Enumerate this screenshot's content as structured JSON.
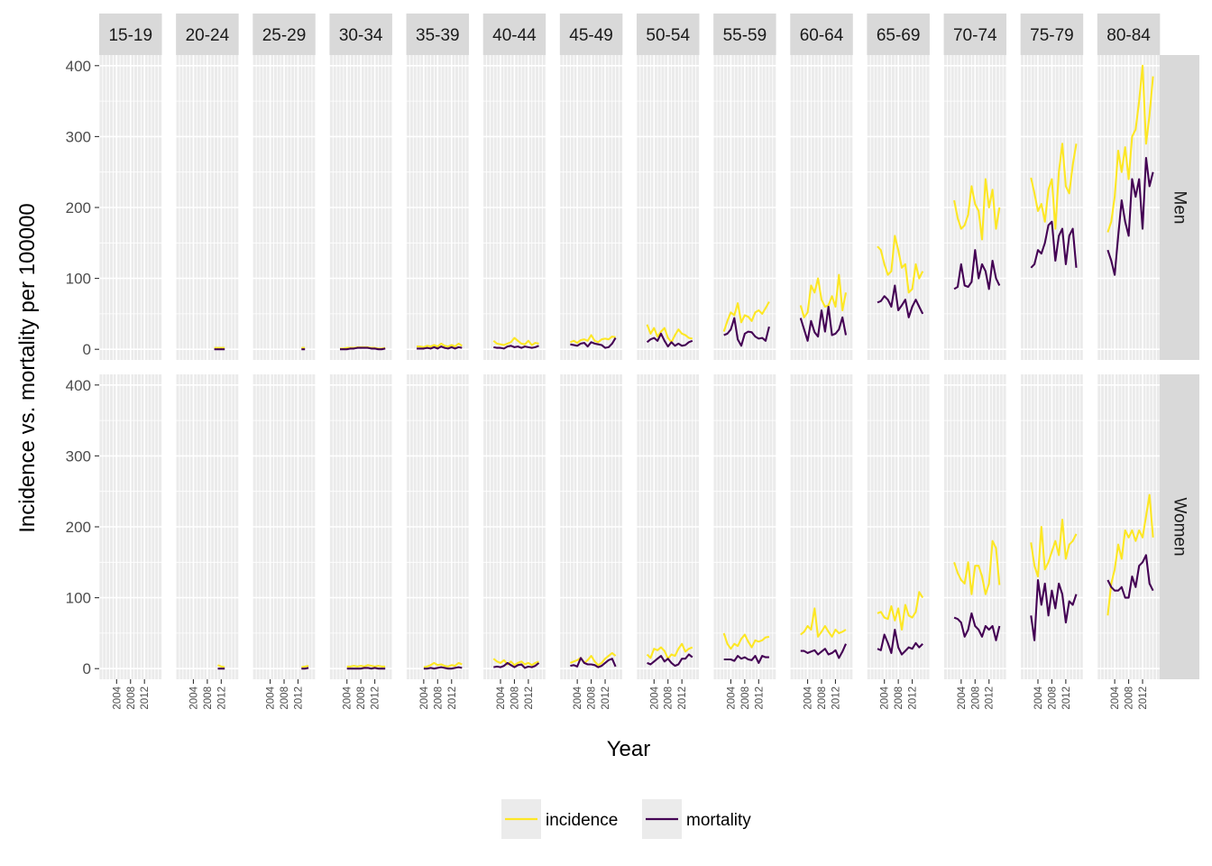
{
  "chart_data": {
    "type": "line",
    "xlabel": "Year",
    "ylabel": "Incidence vs. mortality per 100000",
    "ylim": [
      -15,
      415
    ],
    "yticks": [
      0,
      100,
      200,
      300,
      400
    ],
    "xlim": [
      1999,
      2017
    ],
    "xticks": [
      2004,
      2008,
      2012
    ],
    "xtick_labels": [
      "2004",
      "2008",
      "2012"
    ],
    "grid": true,
    "legend_position": "bottom",
    "colors": {
      "incidence": "#FDE725",
      "mortality": "#440154"
    },
    "legend": [
      {
        "key": "incidence",
        "label": "incidence"
      },
      {
        "key": "mortality",
        "label": "mortality"
      }
    ],
    "col_facets": [
      "15-19",
      "20-24",
      "25-29",
      "30-34",
      "35-39",
      "40-44",
      "45-49",
      "50-54",
      "55-59",
      "60-64",
      "65-69",
      "70-74",
      "75-79",
      "80-84"
    ],
    "row_facets": [
      "Men",
      "Women"
    ],
    "years": [
      2002,
      2003,
      2004,
      2005,
      2006,
      2007,
      2008,
      2009,
      2010,
      2011,
      2012,
      2013,
      2014,
      2015
    ],
    "series": {
      "Men": {
        "15-19": {
          "incidence": [],
          "mortality": []
        },
        "20-24": {
          "incidence": [
            null,
            null,
            null,
            null,
            null,
            null,
            null,
            null,
            2,
            2,
            2,
            2,
            null,
            null
          ],
          "mortality": [
            null,
            null,
            null,
            null,
            null,
            null,
            null,
            null,
            0,
            0,
            0,
            0,
            null,
            null
          ]
        },
        "25-29": {
          "incidence": [
            null,
            null,
            null,
            null,
            null,
            null,
            null,
            null,
            null,
            null,
            null,
            2,
            2,
            null
          ],
          "mortality": [
            null,
            null,
            null,
            null,
            null,
            null,
            null,
            null,
            null,
            null,
            null,
            0,
            0,
            null
          ]
        },
        "30-34": {
          "incidence": [
            1,
            1,
            2,
            2,
            2,
            3,
            3,
            3,
            3,
            2,
            2,
            1,
            1,
            2
          ],
          "mortality": [
            0,
            0,
            0,
            1,
            1,
            2,
            2,
            2,
            2,
            1,
            1,
            0,
            0,
            1
          ]
        },
        "35-39": {
          "incidence": [
            4,
            4,
            3,
            5,
            4,
            6,
            4,
            8,
            5,
            4,
            6,
            4,
            8,
            5
          ],
          "mortality": [
            1,
            1,
            1,
            2,
            1,
            3,
            1,
            4,
            2,
            1,
            3,
            1,
            3,
            2
          ]
        },
        "40-44": {
          "incidence": [
            12,
            8,
            7,
            6,
            8,
            10,
            16,
            12,
            8,
            7,
            12,
            6,
            9,
            8
          ],
          "mortality": [
            3,
            2,
            2,
            1,
            4,
            5,
            3,
            4,
            2,
            4,
            3,
            2,
            3,
            5
          ]
        },
        "45-49": {
          "incidence": [
            10,
            12,
            9,
            13,
            14,
            12,
            20,
            12,
            10,
            14,
            15,
            14,
            18,
            17
          ],
          "mortality": [
            7,
            6,
            5,
            8,
            9,
            4,
            10,
            8,
            7,
            6,
            2,
            3,
            8,
            16
          ]
        },
        "50-54": {
          "incidence": [
            35,
            22,
            30,
            18,
            25,
            30,
            16,
            10,
            20,
            28,
            22,
            20,
            16,
            15
          ],
          "mortality": [
            10,
            14,
            16,
            12,
            22,
            12,
            4,
            10,
            5,
            8,
            5,
            6,
            10,
            12
          ]
        },
        "55-59": {
          "incidence": [
            25,
            40,
            52,
            48,
            65,
            38,
            48,
            46,
            40,
            52,
            55,
            50,
            58,
            67
          ],
          "mortality": [
            20,
            22,
            28,
            44,
            14,
            5,
            22,
            25,
            24,
            18,
            15,
            16,
            12,
            32
          ]
        },
        "60-64": {
          "incidence": [
            62,
            45,
            52,
            90,
            80,
            100,
            70,
            60,
            62,
            75,
            60,
            105,
            55,
            80
          ],
          "mortality": [
            44,
            28,
            12,
            40,
            24,
            18,
            55,
            25,
            60,
            20,
            22,
            28,
            45,
            20
          ]
        },
        "65-69": {
          "incidence": [
            145,
            140,
            120,
            105,
            110,
            160,
            140,
            115,
            120,
            80,
            85,
            120,
            100,
            110
          ],
          "mortality": [
            66,
            68,
            75,
            70,
            60,
            90,
            55,
            62,
            70,
            45,
            60,
            70,
            60,
            50
          ]
        },
        "70-74": {
          "incidence": [
            210,
            185,
            170,
            175,
            190,
            230,
            205,
            195,
            155,
            240,
            200,
            225,
            170,
            200
          ],
          "mortality": [
            85,
            88,
            120,
            90,
            88,
            95,
            140,
            100,
            120,
            110,
            85,
            125,
            100,
            90
          ]
        },
        "75-79": {
          "incidence": [
            242,
            220,
            195,
            205,
            180,
            225,
            240,
            170,
            250,
            290,
            230,
            220,
            260,
            290
          ],
          "mortality": [
            115,
            120,
            140,
            135,
            150,
            175,
            180,
            125,
            160,
            170,
            120,
            160,
            170,
            115
          ]
        },
        "80-84": {
          "incidence": [
            165,
            180,
            215,
            280,
            250,
            285,
            240,
            300,
            310,
            350,
            400,
            290,
            330,
            385
          ],
          "mortality": [
            140,
            125,
            105,
            160,
            210,
            180,
            160,
            240,
            215,
            240,
            170,
            270,
            230,
            250
          ]
        }
      },
      "Women": {
        "15-19": {
          "incidence": [],
          "mortality": []
        },
        "20-24": {
          "incidence": [
            null,
            null,
            null,
            null,
            null,
            null,
            null,
            null,
            null,
            5,
            3,
            2,
            null,
            null
          ],
          "mortality": [
            null,
            null,
            null,
            null,
            null,
            null,
            null,
            null,
            null,
            0,
            0,
            0,
            null,
            null
          ]
        },
        "25-29": {
          "incidence": [
            null,
            null,
            null,
            null,
            null,
            null,
            null,
            null,
            null,
            null,
            null,
            2,
            3,
            4
          ],
          "mortality": [
            null,
            null,
            null,
            null,
            null,
            null,
            null,
            null,
            null,
            null,
            null,
            0,
            0,
            1
          ]
        },
        "30-34": {
          "incidence": [
            null,
            null,
            3,
            3,
            4,
            3,
            4,
            3,
            5,
            4,
            3,
            4,
            3,
            3
          ],
          "mortality": [
            null,
            null,
            0,
            0,
            0,
            0,
            0,
            1,
            1,
            0,
            1,
            0,
            0,
            0
          ]
        },
        "35-39": {
          "incidence": [
            null,
            null,
            2,
            3,
            5,
            8,
            5,
            6,
            4,
            3,
            5,
            4,
            8,
            6
          ],
          "mortality": [
            null,
            null,
            0,
            0,
            1,
            0,
            1,
            2,
            1,
            0,
            0,
            1,
            2,
            1
          ]
        },
        "40-44": {
          "incidence": [
            14,
            10,
            8,
            12,
            6,
            10,
            5,
            8,
            10,
            6,
            8,
            5,
            8,
            10
          ],
          "mortality": [
            2,
            3,
            2,
            4,
            8,
            5,
            2,
            5,
            6,
            1,
            3,
            2,
            4,
            8
          ]
        },
        "45-49": {
          "incidence": [
            8,
            10,
            12,
            15,
            8,
            12,
            18,
            10,
            5,
            8,
            14,
            18,
            22,
            18
          ],
          "mortality": [
            4,
            5,
            3,
            15,
            8,
            6,
            6,
            5,
            2,
            4,
            8,
            12,
            14,
            3
          ]
        },
        "50-54": {
          "incidence": [
            20,
            15,
            28,
            26,
            30,
            25,
            14,
            20,
            18,
            28,
            35,
            24,
            28,
            30
          ],
          "mortality": [
            8,
            6,
            10,
            14,
            18,
            10,
            14,
            8,
            4,
            6,
            14,
            14,
            20,
            16
          ]
        },
        "55-59": {
          "incidence": [
            50,
            35,
            28,
            35,
            32,
            42,
            48,
            38,
            30,
            40,
            38,
            40,
            44,
            45
          ],
          "mortality": [
            13,
            13,
            13,
            11,
            18,
            14,
            16,
            13,
            12,
            18,
            8,
            18,
            16,
            16
          ]
        },
        "60-64": {
          "incidence": [
            48,
            52,
            60,
            55,
            85,
            45,
            52,
            60,
            52,
            45,
            55,
            50,
            52,
            55
          ],
          "mortality": [
            25,
            25,
            22,
            24,
            26,
            20,
            24,
            28,
            20,
            22,
            26,
            15,
            24,
            35
          ]
        },
        "65-69": {
          "incidence": [
            78,
            80,
            72,
            70,
            88,
            68,
            85,
            55,
            90,
            75,
            72,
            80,
            108,
            100
          ],
          "mortality": [
            28,
            26,
            48,
            36,
            22,
            55,
            30,
            20,
            25,
            30,
            28,
            36,
            30,
            35
          ]
        },
        "70-74": {
          "incidence": [
            150,
            135,
            125,
            120,
            150,
            105,
            145,
            145,
            130,
            105,
            120,
            180,
            170,
            118
          ],
          "mortality": [
            72,
            70,
            65,
            45,
            55,
            78,
            60,
            55,
            45,
            60,
            55,
            60,
            40,
            60
          ]
        },
        "75-79": {
          "incidence": [
            178,
            145,
            130,
            200,
            140,
            150,
            165,
            180,
            160,
            210,
            155,
            175,
            180,
            190
          ],
          "mortality": [
            75,
            40,
            125,
            90,
            120,
            75,
            110,
            85,
            120,
            105,
            65,
            95,
            90,
            105
          ]
        },
        "80-84": {
          "incidence": [
            75,
            120,
            140,
            175,
            155,
            195,
            185,
            195,
            180,
            195,
            185,
            215,
            245,
            185
          ],
          "mortality": [
            125,
            115,
            110,
            110,
            115,
            100,
            100,
            130,
            115,
            145,
            150,
            160,
            120,
            110
          ]
        }
      }
    }
  }
}
